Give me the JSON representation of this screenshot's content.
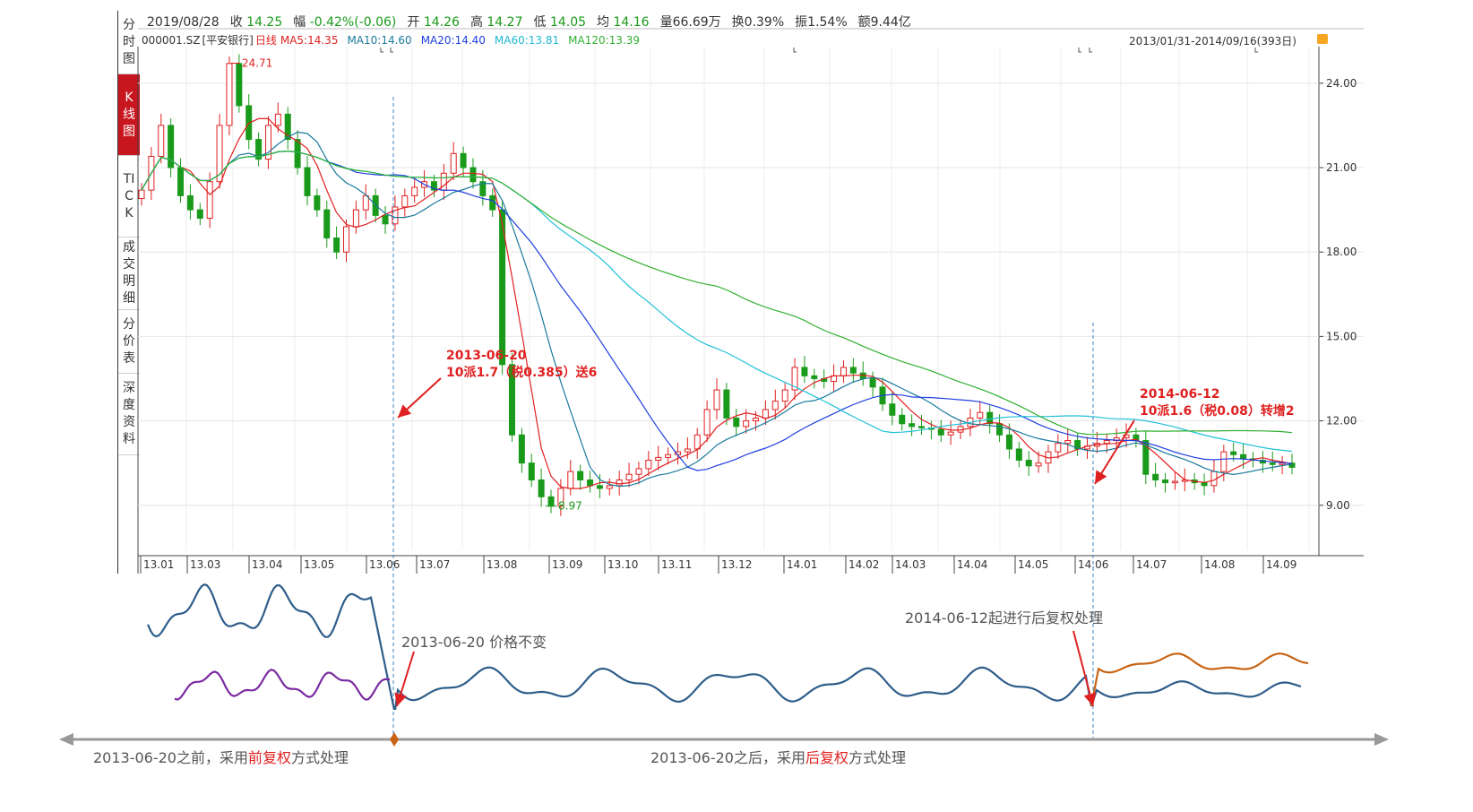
{
  "info_bar": {
    "date": "2019/08/28",
    "close_label": "收",
    "close": "14.25",
    "change_label": "幅",
    "change": "-0.42%(-0.06)",
    "open_label": "开",
    "open": "14.26",
    "high_label": "高",
    "high": "14.27",
    "low_label": "低",
    "low": "14.05",
    "avg_label": "均",
    "avg": "14.16",
    "volume": "量66.69万",
    "turnover": "换0.39%",
    "amplitude": "振1.54%",
    "amount": "额9.44亿"
  },
  "ma_bar": {
    "code": "000001.SZ",
    "name": "[平安银行]",
    "period": "日线",
    "ma5": "MA5:14.35",
    "ma10": "MA10:14.60",
    "ma20": "MA20:14.40",
    "ma60": "MA60:13.81",
    "ma120": "MA120:13.39",
    "range": "2013/01/31-2014/09/16(393日)"
  },
  "tabs": [
    "分时图",
    "K线图",
    "TICK",
    "成交明细",
    "分价表",
    "深度资料"
  ],
  "active_tab": 1,
  "colors": {
    "up": "#e02020",
    "down": "#1a9a1a",
    "ma5": "#e02020",
    "ma10": "#1a7a9c",
    "ma20": "#2040e0",
    "ma60": "#20c0d8",
    "ma120": "#30b030",
    "accent": "#c8161e",
    "sketch_blue": "#2e5d8a",
    "sketch_purple": "#7a2aa0",
    "sketch_orange": "#c86414"
  },
  "chart_data": {
    "type": "candlestick",
    "y_ticks": [
      "24.00",
      "21.00",
      "18.00",
      "15.00",
      "12.00",
      "9.00"
    ],
    "ylim": [
      7.4,
      25.3
    ],
    "x_ticks": [
      "13.01",
      "13.03",
      "13.04",
      "13.05",
      "13.06",
      "13.07",
      "13.08",
      "13.09",
      "13.10",
      "13.11",
      "13.12",
      "14.01",
      "14.02",
      "14.03",
      "14.04",
      "14.05",
      "14.06",
      "14.07",
      "14.08",
      "14.09"
    ],
    "max_label": "24.71",
    "min_label": "8.97",
    "closes": [
      20.2,
      21.4,
      22.5,
      21.0,
      20.0,
      19.5,
      19.2,
      20.5,
      22.5,
      24.7,
      23.2,
      22.0,
      21.3,
      22.5,
      22.9,
      22.0,
      21.0,
      20.0,
      19.5,
      18.5,
      18.0,
      18.9,
      19.5,
      20.0,
      19.3,
      19.0,
      19.6,
      20.0,
      20.3,
      20.5,
      20.2,
      20.8,
      21.5,
      21.0,
      20.5,
      20.0,
      19.5,
      14.0,
      11.5,
      10.5,
      9.9,
      9.3,
      8.97,
      9.6,
      10.2,
      9.9,
      9.7,
      9.6,
      9.7,
      9.9,
      10.1,
      10.3,
      10.6,
      10.7,
      10.8,
      10.9,
      11.0,
      11.5,
      12.4,
      13.1,
      12.1,
      11.8,
      12.0,
      12.1,
      12.4,
      12.7,
      13.1,
      13.9,
      13.6,
      13.5,
      13.4,
      13.6,
      13.9,
      13.7,
      13.5,
      13.2,
      12.6,
      12.2,
      11.9,
      11.8,
      11.75,
      11.7,
      11.5,
      11.6,
      11.8,
      12.1,
      12.3,
      11.9,
      11.5,
      11.0,
      10.6,
      10.4,
      10.5,
      10.9,
      11.2,
      11.3,
      11.0,
      11.1,
      11.2,
      11.3,
      11.4,
      11.5,
      11.3,
      10.1,
      9.9,
      9.8,
      9.85,
      9.9,
      9.8,
      9.7,
      10.2,
      10.9,
      10.8,
      10.65,
      10.6,
      10.5,
      10.45,
      10.5,
      10.35
    ],
    "annotations": [
      {
        "date": "2013-06-20",
        "text": "10派1.7（税0.385）送6"
      },
      {
        "date": "2014-06-12",
        "text": "10派1.6（税0.08）转增2"
      }
    ],
    "sketch_labels": {
      "price_unchanged": "2013-06-20 价格不变",
      "backward_start": "2014-06-12起进行后复权处理",
      "before_prefix": "2013-06-20之前，采用",
      "before_highlight": "前复权",
      "before_suffix": "方式处理",
      "after_prefix": "2013-06-20之后，采用",
      "after_highlight": "后复权",
      "after_suffix": "方式处理"
    }
  }
}
